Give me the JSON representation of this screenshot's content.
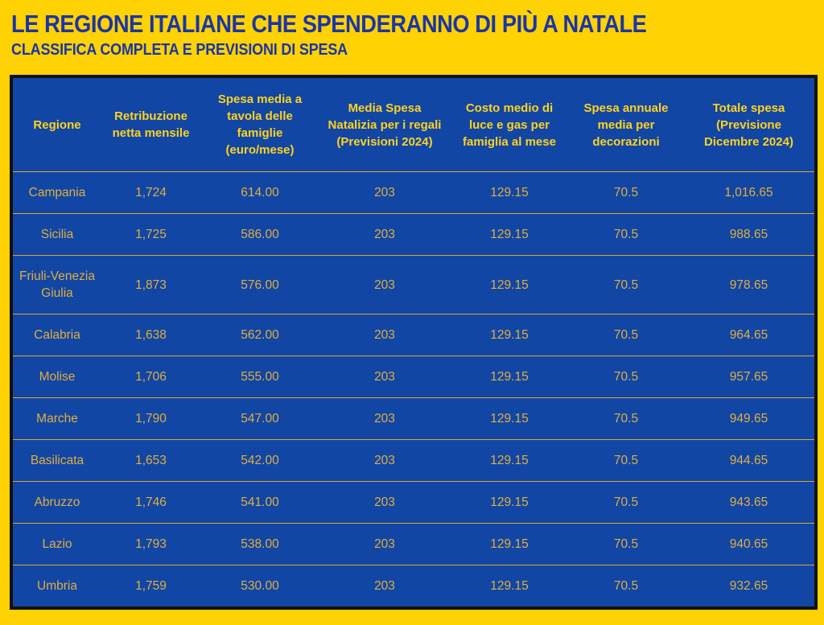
{
  "header": {
    "title": "LE REGIONE ITALIANE CHE SPENDERANNO DI PIÙ A NATALE",
    "subtitle": "CLASSIFICA COMPLETA E PREVISIONI DI SPESA"
  },
  "colors": {
    "page_background": "#FFD204",
    "table_background": "#1246A5",
    "table_border": "#111111",
    "title_text": "#1B35A6",
    "header_text": "#FFD21E",
    "cell_text": "#DFAF3D",
    "row_divider": "#D9A92F"
  },
  "chart_data": {
    "type": "table",
    "title": "LE REGIONE ITALIANE CHE SPENDERANNO DI PIÙ A NATALE",
    "subtitle": "CLASSIFICA COMPLETA E PREVISIONI DI SPESA",
    "columns": [
      "Regione",
      "Retribuzione netta mensile",
      "Spesa media a tavola delle famiglie (euro/mese)",
      "Media Spesa Natalizia per i regali (Previsioni 2024)",
      "Costo medio di luce e gas per famiglia al mese",
      "Spesa annuale media per decorazioni",
      "Totale spesa (Previsione Dicembre 2024)"
    ],
    "rows": [
      [
        "Campania",
        "1,724",
        "614.00",
        "203",
        "129.15",
        "70.5",
        "1,016.65"
      ],
      [
        "Sicilia",
        "1,725",
        "586.00",
        "203",
        "129.15",
        "70.5",
        "988.65"
      ],
      [
        "Friuli-Venezia Giulia",
        "1,873",
        "576.00",
        "203",
        "129.15",
        "70.5",
        "978.65"
      ],
      [
        "Calabria",
        "1,638",
        "562.00",
        "203",
        "129.15",
        "70.5",
        "964.65"
      ],
      [
        "Molise",
        "1,706",
        "555.00",
        "203",
        "129.15",
        "70.5",
        "957.65"
      ],
      [
        "Marche",
        "1,790",
        "547.00",
        "203",
        "129.15",
        "70.5",
        "949.65"
      ],
      [
        "Basilicata",
        "1,653",
        "542.00",
        "203",
        "129.15",
        "70.5",
        "944.65"
      ],
      [
        "Abruzzo",
        "1,746",
        "541.00",
        "203",
        "129.15",
        "70.5",
        "943.65"
      ],
      [
        "Lazio",
        "1,793",
        "538.00",
        "203",
        "129.15",
        "70.5",
        "940.65"
      ],
      [
        "Umbria",
        "1,759",
        "530.00",
        "203",
        "129.15",
        "70.5",
        "932.65"
      ]
    ]
  }
}
